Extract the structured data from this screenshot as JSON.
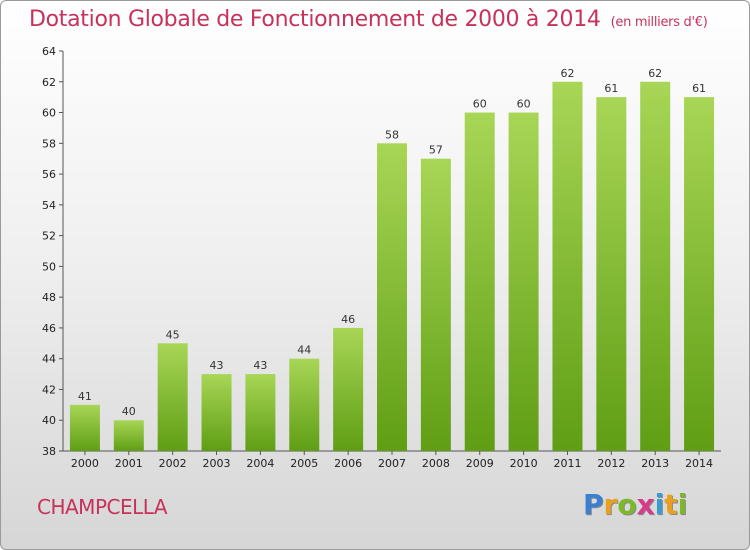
{
  "title": "Dotation Globale de Fonctionnement de 2000 à 2014",
  "subtitle": "(en milliers d'€)",
  "commune": "CHAMPCELLA",
  "logo": {
    "letters": [
      "P",
      "r",
      "o",
      "x",
      "i",
      "t",
      "i"
    ]
  },
  "colors": {
    "title": "#c8325a",
    "bar_top": "#a8d656",
    "bar_bottom": "#5f9e14"
  },
  "chart_data": {
    "type": "bar",
    "title": "Dotation Globale de Fonctionnement de 2000 à 2014",
    "subtitle": "(en milliers d'€)",
    "xlabel": "",
    "ylabel": "",
    "categories": [
      "2000",
      "2001",
      "2002",
      "2003",
      "2004",
      "2005",
      "2006",
      "2007",
      "2008",
      "2009",
      "2010",
      "2011",
      "2012",
      "2013",
      "2014"
    ],
    "values": [
      41,
      40,
      45,
      43,
      43,
      44,
      46,
      58,
      57,
      60,
      60,
      62,
      61,
      62,
      61
    ],
    "ylim": [
      38,
      64
    ],
    "yticks": [
      38,
      40,
      42,
      44,
      46,
      48,
      50,
      52,
      54,
      56,
      58,
      60,
      62,
      64
    ],
    "grid": false,
    "legend": "none"
  }
}
